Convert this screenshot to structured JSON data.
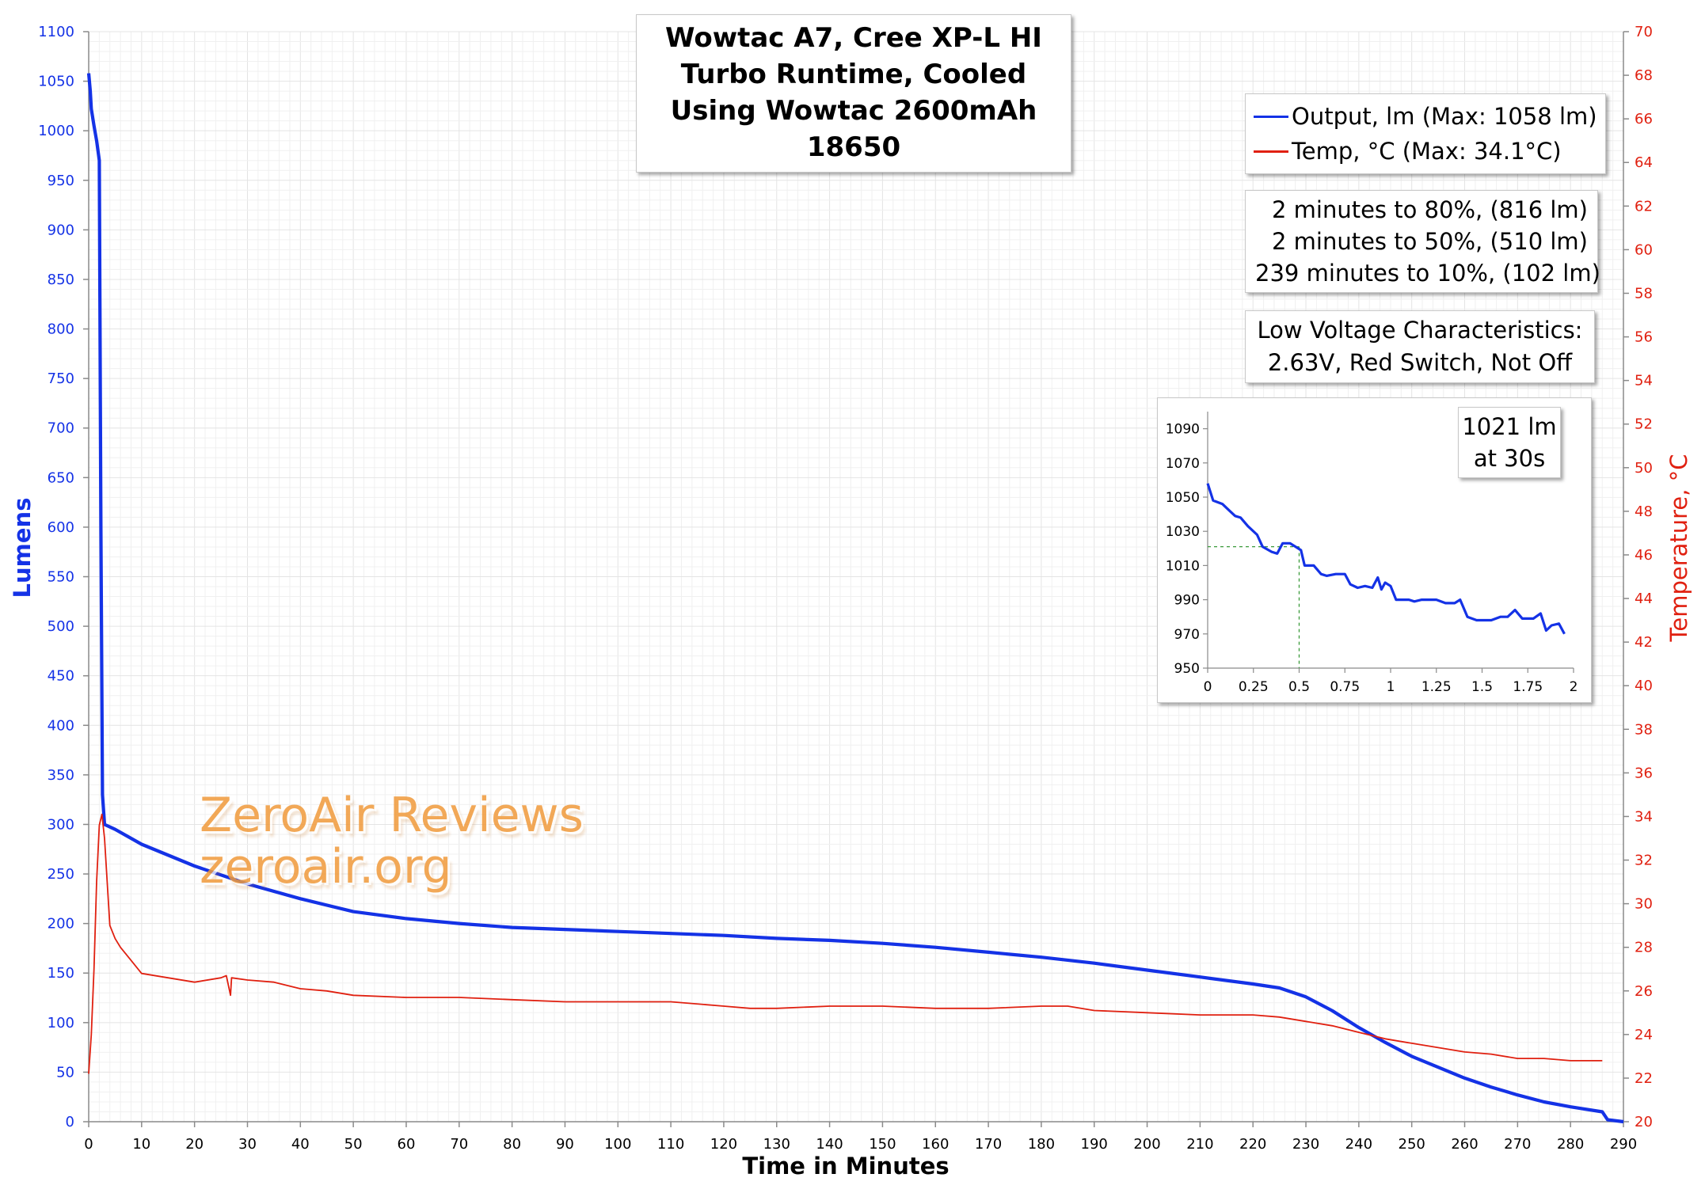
{
  "chart_data": {
    "type": "line",
    "title": [
      "Wowtac A7, Cree XP-L HI",
      "Turbo Runtime, Cooled",
      "Using Wowtac 2600mAh 18650"
    ],
    "xlabel": "Time in Minutes",
    "ylabel": "Lumens",
    "y2label": "Temperature, °C",
    "xlim": [
      0,
      290
    ],
    "ylim": [
      0,
      1100
    ],
    "y2lim": [
      20,
      70
    ],
    "x_ticks": [
      0,
      10,
      20,
      30,
      40,
      50,
      60,
      70,
      80,
      90,
      100,
      110,
      120,
      130,
      140,
      150,
      160,
      170,
      180,
      190,
      200,
      210,
      220,
      230,
      240,
      250,
      260,
      270,
      280,
      290
    ],
    "y_ticks": [
      0,
      50,
      100,
      150,
      200,
      250,
      300,
      350,
      400,
      450,
      500,
      550,
      600,
      650,
      700,
      750,
      800,
      850,
      900,
      950,
      1000,
      1050,
      1100
    ],
    "y2_ticks": [
      20,
      22,
      24,
      26,
      28,
      30,
      32,
      34,
      36,
      38,
      40,
      42,
      44,
      46,
      48,
      50,
      52,
      54,
      56,
      58,
      60,
      62,
      64,
      66,
      68,
      70
    ],
    "grid": true,
    "legend_position": "top-right",
    "series": [
      {
        "name": "Output, lm (Max: 1058 lm)",
        "axis": "left",
        "color": "#1432e6",
        "points": [
          [
            0,
            1058
          ],
          [
            0.3,
            1040
          ],
          [
            0.5,
            1022
          ],
          [
            1,
            1005
          ],
          [
            1.5,
            990
          ],
          [
            2,
            970
          ],
          [
            2.3,
            600
          ],
          [
            2.6,
            330
          ],
          [
            3,
            300
          ],
          [
            5,
            295
          ],
          [
            10,
            280
          ],
          [
            20,
            258
          ],
          [
            30,
            240
          ],
          [
            40,
            225
          ],
          [
            50,
            212
          ],
          [
            60,
            205
          ],
          [
            70,
            200
          ],
          [
            80,
            196
          ],
          [
            90,
            194
          ],
          [
            100,
            192
          ],
          [
            110,
            190
          ],
          [
            120,
            188
          ],
          [
            130,
            185
          ],
          [
            140,
            183
          ],
          [
            150,
            180
          ],
          [
            160,
            176
          ],
          [
            170,
            171
          ],
          [
            180,
            166
          ],
          [
            190,
            160
          ],
          [
            200,
            153
          ],
          [
            210,
            146
          ],
          [
            220,
            139
          ],
          [
            225,
            135
          ],
          [
            230,
            126
          ],
          [
            235,
            112
          ],
          [
            240,
            95
          ],
          [
            245,
            80
          ],
          [
            250,
            66
          ],
          [
            255,
            55
          ],
          [
            260,
            44
          ],
          [
            265,
            35
          ],
          [
            270,
            27
          ],
          [
            275,
            20
          ],
          [
            280,
            15
          ],
          [
            286,
            10
          ],
          [
            287,
            2
          ],
          [
            290,
            0
          ]
        ]
      },
      {
        "name": "Temp, °C (Max: 34.1°C)",
        "axis": "right",
        "color": "#e02010",
        "points": [
          [
            0,
            22.2
          ],
          [
            0.5,
            24
          ],
          [
            1,
            27
          ],
          [
            1.5,
            31
          ],
          [
            2,
            33.6
          ],
          [
            2.5,
            34.1
          ],
          [
            3,
            33
          ],
          [
            4,
            29
          ],
          [
            5,
            28.4
          ],
          [
            6,
            28
          ],
          [
            8,
            27.4
          ],
          [
            10,
            26.8
          ],
          [
            15,
            26.6
          ],
          [
            20,
            26.4
          ],
          [
            25,
            26.6
          ],
          [
            26,
            26.7
          ],
          [
            26.8,
            25.8
          ],
          [
            27,
            26.6
          ],
          [
            30,
            26.5
          ],
          [
            35,
            26.4
          ],
          [
            40,
            26.1
          ],
          [
            45,
            26.0
          ],
          [
            50,
            25.8
          ],
          [
            60,
            25.7
          ],
          [
            70,
            25.7
          ],
          [
            80,
            25.6
          ],
          [
            90,
            25.5
          ],
          [
            100,
            25.5
          ],
          [
            110,
            25.5
          ],
          [
            120,
            25.3
          ],
          [
            125,
            25.2
          ],
          [
            130,
            25.2
          ],
          [
            140,
            25.3
          ],
          [
            150,
            25.3
          ],
          [
            160,
            25.2
          ],
          [
            170,
            25.2
          ],
          [
            180,
            25.3
          ],
          [
            185,
            25.3
          ],
          [
            190,
            25.1
          ],
          [
            200,
            25.0
          ],
          [
            210,
            24.9
          ],
          [
            220,
            24.9
          ],
          [
            225,
            24.8
          ],
          [
            230,
            24.6
          ],
          [
            235,
            24.4
          ],
          [
            240,
            24.1
          ],
          [
            245,
            23.8
          ],
          [
            250,
            23.6
          ],
          [
            255,
            23.4
          ],
          [
            260,
            23.2
          ],
          [
            265,
            23.1
          ],
          [
            270,
            22.9
          ],
          [
            275,
            22.9
          ],
          [
            280,
            22.8
          ],
          [
            286,
            22.8
          ]
        ]
      }
    ],
    "stats": [
      "2 minutes to 80%, (816 lm)",
      "2 minutes to 50%, (510 lm)",
      "239 minutes to 10%, (102 lm)"
    ],
    "low_voltage": [
      "Low Voltage Characteristics:",
      "2.63V, Red Switch, Not Off"
    ],
    "inset": {
      "type": "line",
      "xlim": [
        0,
        2
      ],
      "ylim": [
        950,
        1100
      ],
      "x_ticks": [
        0,
        0.25,
        0.5,
        0.75,
        1,
        1.25,
        1.5,
        1.75,
        2
      ],
      "y_ticks": [
        950,
        970,
        990,
        1010,
        1030,
        1050,
        1070,
        1090
      ],
      "annotation": [
        "1021 lm",
        "at 30s"
      ],
      "marker": {
        "x": 0.5,
        "y": 1021
      },
      "color": "#1432e6",
      "points": [
        [
          0,
          1058
        ],
        [
          0.03,
          1048
        ],
        [
          0.08,
          1046
        ],
        [
          0.12,
          1042
        ],
        [
          0.15,
          1039
        ],
        [
          0.18,
          1038
        ],
        [
          0.22,
          1033
        ],
        [
          0.27,
          1028
        ],
        [
          0.3,
          1021
        ],
        [
          0.35,
          1018
        ],
        [
          0.38,
          1017
        ],
        [
          0.41,
          1023
        ],
        [
          0.45,
          1023
        ],
        [
          0.48,
          1021
        ],
        [
          0.51,
          1019
        ],
        [
          0.53,
          1010
        ],
        [
          0.58,
          1010
        ],
        [
          0.62,
          1005
        ],
        [
          0.65,
          1004
        ],
        [
          0.7,
          1005
        ],
        [
          0.75,
          1005
        ],
        [
          0.78,
          999
        ],
        [
          0.82,
          997
        ],
        [
          0.86,
          998
        ],
        [
          0.9,
          997
        ],
        [
          0.93,
          1003
        ],
        [
          0.95,
          996
        ],
        [
          0.97,
          1000
        ],
        [
          1.0,
          998
        ],
        [
          1.03,
          990
        ],
        [
          1.1,
          990
        ],
        [
          1.13,
          989
        ],
        [
          1.17,
          990
        ],
        [
          1.22,
          990
        ],
        [
          1.25,
          990
        ],
        [
          1.3,
          988
        ],
        [
          1.35,
          988
        ],
        [
          1.38,
          990
        ],
        [
          1.42,
          980
        ],
        [
          1.47,
          978
        ],
        [
          1.55,
          978
        ],
        [
          1.6,
          980
        ],
        [
          1.64,
          980
        ],
        [
          1.68,
          984
        ],
        [
          1.72,
          979
        ],
        [
          1.78,
          979
        ],
        [
          1.82,
          982
        ],
        [
          1.85,
          972
        ],
        [
          1.88,
          975
        ],
        [
          1.92,
          976
        ],
        [
          1.95,
          970
        ]
      ]
    }
  },
  "watermark": [
    "ZeroAir Reviews",
    "zeroair.org"
  ],
  "colors": {
    "output": "#1432e6",
    "temp": "#e02010",
    "grid": "#e4e4e4",
    "minor_grid": "#f0f0f0"
  }
}
